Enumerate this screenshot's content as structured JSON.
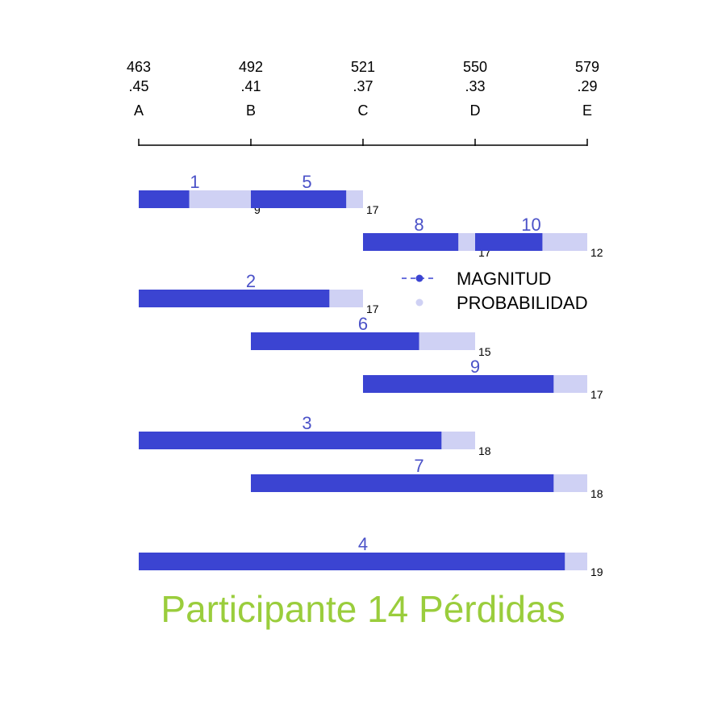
{
  "title": "Participante 14 Pérdidas",
  "colors": {
    "magnitude": "#3B44D2",
    "probability": "#CFD1F4",
    "label": "#4B52C8",
    "title": "#9ACD3C",
    "axis": "#000000"
  },
  "chart_data": {
    "type": "bar",
    "title": "Participante 14 Pérdidas",
    "axis": {
      "ticks": [
        {
          "letter": "A",
          "magnitude": "463",
          "probability": ".45"
        },
        {
          "letter": "B",
          "magnitude": "492",
          "probability": ".41"
        },
        {
          "letter": "C",
          "magnitude": "521",
          "probability": ".37"
        },
        {
          "letter": "D",
          "magnitude": "550",
          "probability": ".33"
        },
        {
          "letter": "E",
          "magnitude": "579",
          "probability": ".29"
        }
      ]
    },
    "legend": [
      {
        "label": "MAGNITUD",
        "marker": "dashed-line-dot"
      },
      {
        "label": "PROBABILIDAD",
        "marker": "light-dot"
      }
    ],
    "legend_position": "right",
    "bars": [
      {
        "id": "1",
        "start": 0,
        "end": 1,
        "magnitude_end": 0.45,
        "count": "9"
      },
      {
        "id": "8",
        "start": 2,
        "end": 3,
        "magnitude_end": 2.85,
        "count": "17"
      },
      {
        "id": "5",
        "start": 1,
        "end": 2,
        "magnitude_end": 1.85,
        "count": "17"
      },
      {
        "id": "10",
        "start": 3,
        "end": 4,
        "magnitude_end": 3.6,
        "count": "12"
      },
      {
        "id": "2",
        "start": 0,
        "end": 2,
        "magnitude_end": 1.7,
        "count": "17"
      },
      {
        "id": "6",
        "start": 1,
        "end": 3,
        "magnitude_end": 2.5,
        "count": "15"
      },
      {
        "id": "9",
        "start": 2,
        "end": 4,
        "magnitude_end": 3.7,
        "count": "17"
      },
      {
        "id": "3",
        "start": 0,
        "end": 3,
        "magnitude_end": 2.7,
        "count": "18"
      },
      {
        "id": "7",
        "start": 1,
        "end": 4,
        "magnitude_end": 3.7,
        "count": "18"
      },
      {
        "id": "4",
        "start": 0,
        "end": 4,
        "magnitude_end": 3.8,
        "count": "19"
      }
    ]
  }
}
